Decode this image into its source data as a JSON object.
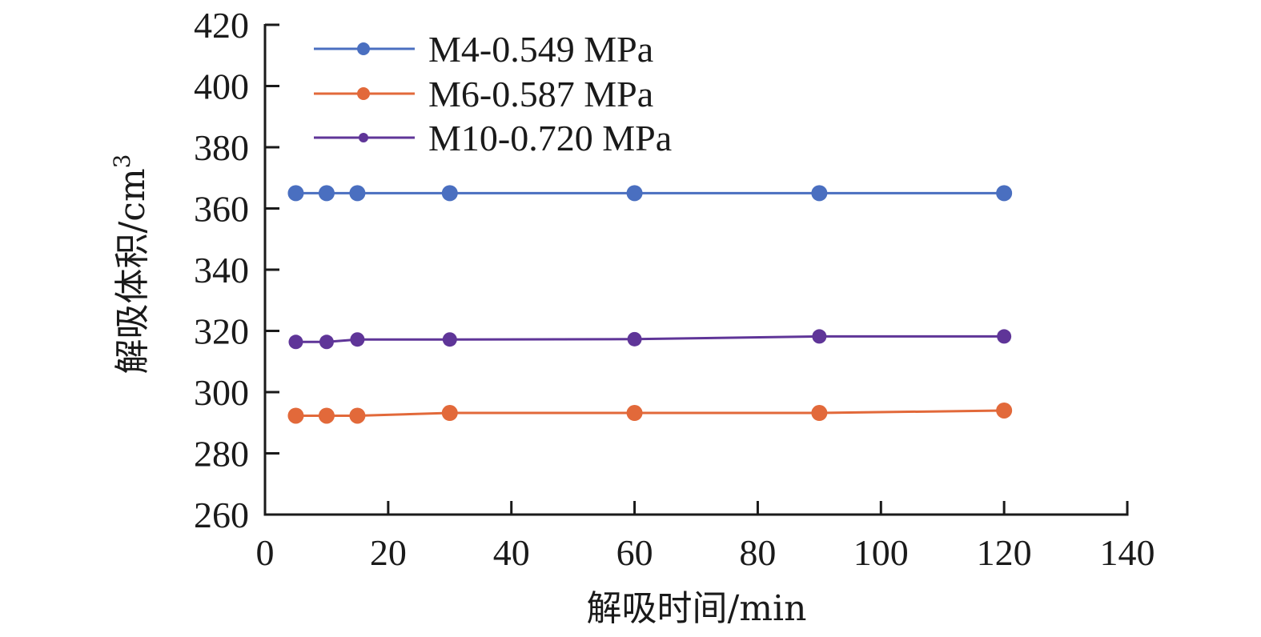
{
  "chart_data": {
    "type": "line",
    "title": "",
    "xlabel": "解吸时间/min",
    "ylabel": "解吸体积/cm",
    "ylabel_superscript": "3",
    "xlim": [
      0,
      140
    ],
    "ylim": [
      260,
      420
    ],
    "x_ticks": [
      "0",
      "20",
      "40",
      "60",
      "80",
      "100",
      "120",
      "140"
    ],
    "y_ticks": [
      "260",
      "280",
      "300",
      "320",
      "340",
      "360",
      "380",
      "400",
      "420"
    ],
    "grid": false,
    "legend_position": "top-left",
    "x": [
      5,
      10,
      15,
      30,
      60,
      90,
      120
    ],
    "series": [
      {
        "name": "M4-0.549 MPa",
        "color": "#4a6fc0",
        "values": [
          365,
          365,
          365,
          365,
          365,
          365,
          365
        ]
      },
      {
        "name": "M6-0.587 MPa",
        "color": "#e2693a",
        "values": [
          292.3,
          292.3,
          292.3,
          293.2,
          293.2,
          293.2,
          294.0
        ]
      },
      {
        "name": "M10-0.720 MPa",
        "color": "#5f3598",
        "values": [
          316.4,
          316.4,
          317.2,
          317.2,
          317.3,
          318.2,
          318.2
        ]
      }
    ]
  }
}
